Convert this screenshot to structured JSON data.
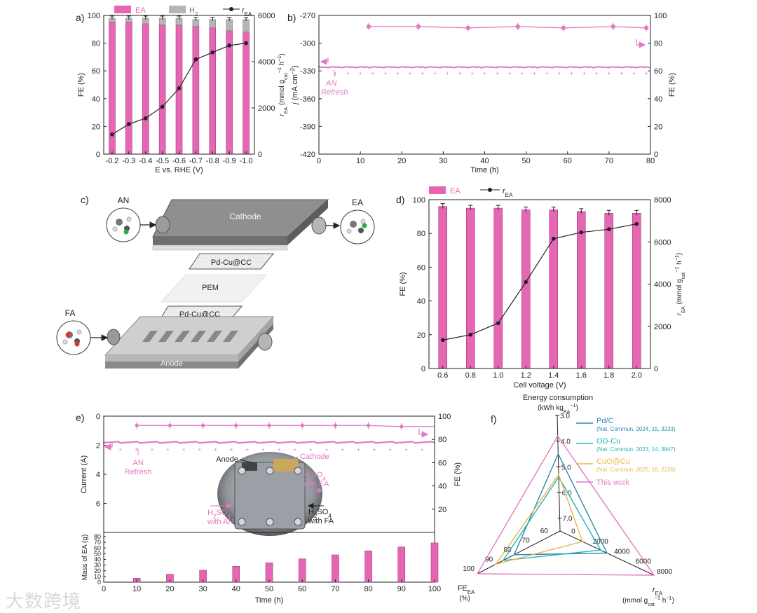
{
  "colors": {
    "ea": "#e666b4",
    "h2": "#b5b5b5",
    "line": "#222222",
    "pink_line": "#e27ac3",
    "pdc": "#2e86b5",
    "odcu": "#24b1b5",
    "cuocu": "#e8b64a",
    "this_work": "#e27ac3"
  },
  "watermark": "大数跨境",
  "chart_data": [
    {
      "panel": "a)",
      "type": "bar",
      "legend": [
        "EA",
        "H",
        "2",
        "r",
        "EA"
      ],
      "categories": [
        "-0.2",
        "-0.3",
        "-0.4",
        "-0.5",
        "-0.6",
        "-0.7",
        "-0.8",
        "-0.9",
        "-1.0"
      ],
      "series": [
        {
          "name": "EA",
          "values": [
            95,
            95,
            94,
            93,
            93,
            92,
            91,
            89,
            88
          ]
        },
        {
          "name": "H2",
          "values": [
            3,
            3,
            4,
            5,
            5,
            5,
            6,
            8,
            9
          ]
        },
        {
          "name": "rEA",
          "values": [
            850,
            1300,
            1550,
            2050,
            2850,
            4100,
            4400,
            4700,
            4800
          ]
        }
      ],
      "xlabel": "E vs. RHE (V)",
      "ylabel": "FE (%)",
      "ylabel2": [
        "r",
        "EA",
        " (mmol g",
        "cat",
        "−1",
        " h",
        "−1",
        ")"
      ],
      "ylim": [
        0,
        100
      ],
      "y2lim": [
        0,
        6000
      ],
      "yticks": [
        "0",
        "20",
        "40",
        "60",
        "80",
        "100"
      ],
      "y2ticks": [
        "0",
        "2000",
        "4000",
        "6000"
      ]
    },
    {
      "panel": "b)",
      "type": "line",
      "xlabel": "Time (h)",
      "ylabel": [
        "j",
        " (mA cm",
        "−2",
        ")"
      ],
      "ylabel2": "FE (%)",
      "xlim": [
        0,
        80
      ],
      "ylim": [
        -420,
        -270
      ],
      "y2lim": [
        0,
        100
      ],
      "xticks": [
        "0",
        "10",
        "20",
        "30",
        "40",
        "50",
        "60",
        "70",
        "80"
      ],
      "yticks": [
        "-270",
        "-300",
        "-330",
        "-360",
        "-390",
        "-420"
      ],
      "y2ticks": [
        "0",
        "20",
        "40",
        "60",
        "80",
        "100"
      ],
      "fe_points": {
        "x": [
          12,
          24,
          36,
          48,
          59,
          71,
          79
        ],
        "y": [
          92,
          92,
          91,
          92,
          91,
          92,
          91
        ]
      },
      "current_level": -326,
      "annotation": [
        "AN",
        "Refresh"
      ]
    },
    {
      "panel": "d)",
      "type": "bar",
      "legend": [
        "EA",
        "r",
        "EA"
      ],
      "categories": [
        "0.6",
        "0.8",
        "1.0",
        "1.2",
        "1.4",
        "1.6",
        "1.8",
        "2.0"
      ],
      "series": [
        {
          "name": "EA",
          "values": [
            96,
            95,
            95,
            94,
            94,
            93,
            92,
            92
          ]
        },
        {
          "name": "rEA",
          "values": [
            1350,
            1600,
            2150,
            4100,
            6150,
            6450,
            6600,
            6850
          ]
        }
      ],
      "xlabel": "Cell voltage (V)",
      "ylabel": "FE (%)",
      "ylabel2": [
        "r",
        "EA",
        " (mmol g",
        "cat",
        "−1",
        " h",
        "−1",
        ")"
      ],
      "ylim": [
        0,
        100
      ],
      "y2lim": [
        0,
        8000
      ],
      "yticks": [
        "0",
        "20",
        "40",
        "60",
        "80",
        "100"
      ],
      "y2ticks": [
        "0",
        "2000",
        "4000",
        "6000",
        "8000"
      ]
    },
    {
      "panel": "e)",
      "type": "line",
      "xlabel": "Time (h)",
      "ylabel": "Current (A)",
      "ylabel2": "FE (%)",
      "ylabel_bottom": "Mass of EA (g)",
      "xlim": [
        0,
        100
      ],
      "ylim": [
        0,
        8
      ],
      "y2lim": [
        0,
        100
      ],
      "xticks": [
        "0",
        "10",
        "20",
        "30",
        "40",
        "50",
        "60",
        "70",
        "80",
        "90",
        "100"
      ],
      "yticks": [
        "0",
        "2",
        "4",
        "6"
      ],
      "y2ticks": [
        "20",
        "40",
        "60",
        "80",
        "100"
      ],
      "mass_yticks": [
        "0",
        "10",
        "20",
        "30",
        "40",
        "50",
        "60",
        "70",
        "80"
      ],
      "fe_points": {
        "x": [
          10,
          20,
          30,
          40,
          50,
          60,
          70,
          80,
          90
        ],
        "y": [
          92,
          92,
          92,
          92,
          92,
          92,
          92,
          92,
          91
        ]
      },
      "current_level": 1.8,
      "mass": {
        "x": [
          10,
          20,
          30,
          40,
          50,
          60,
          70,
          80,
          90,
          100
        ],
        "values": [
          7,
          14,
          21,
          28,
          34,
          41,
          48,
          55,
          62,
          69
        ]
      },
      "annotation": [
        "AN",
        "Refresh"
      ],
      "photo_labels": [
        "Anode",
        "Cathode",
        "H",
        "2",
        "SO",
        "4",
        "with EA",
        "with AN",
        "with FA"
      ]
    },
    {
      "panel": "f)",
      "type": "radar",
      "axes": {
        "energy": {
          "title": [
            "Energy consumption",
            "(kWh kg",
            "EA",
            "−1",
            ")"
          ],
          "ticks": [
            "3.0",
            "4.0",
            "5.0",
            "6.0",
            "7.0"
          ]
        },
        "fe": {
          "title": [
            "FE",
            "EA",
            "(%)"
          ],
          "ticks": [
            "60",
            "70",
            "80",
            "90",
            "100"
          ]
        },
        "rate": {
          "title": [
            "r",
            "EA",
            "(mmol g",
            "cat",
            "−1",
            " h",
            "−1",
            ")"
          ],
          "ticks": [
            "0",
            "2000",
            "4000",
            "6000",
            "8000"
          ]
        }
      },
      "series": [
        {
          "name": "Pd/C",
          "ref": "(Nat. Commun. 2024, 15, 3233)",
          "energy": 4.5,
          "fe": 80,
          "rate": 3600
        },
        {
          "name": "OD-Cu",
          "ref": "(Nat. Commun. 2023, 14, 3847)",
          "energy": 5.4,
          "fe": 86,
          "rate": 3000
        },
        {
          "name": "CuO@Cu",
          "ref": "(Nat. Commun. 2025, 16, 2236)",
          "energy": 5.3,
          "fe": 90,
          "rate": 1300
        },
        {
          "name": "This work",
          "energy": 3.8,
          "fe": 100,
          "rate": 8000
        }
      ]
    }
  ],
  "schematic_c": {
    "panel": "c)",
    "labels": {
      "an": "AN",
      "ea": "EA",
      "fa": "FA",
      "cathode": "Cathode",
      "pdcu_top": "Pd-Cu@CC",
      "pem": "PEM",
      "pdcu_bottom": "Pd-Cu@CC",
      "anode": "Anode"
    }
  }
}
